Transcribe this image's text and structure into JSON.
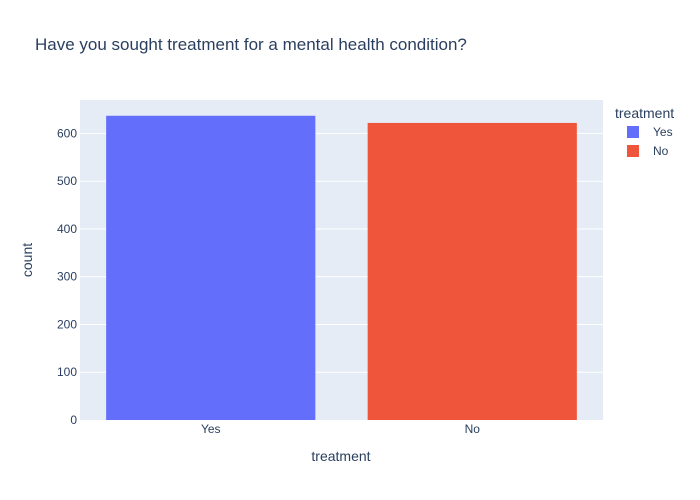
{
  "chart_data": {
    "type": "bar",
    "title": "Have you sought treatment for a mental health condition?",
    "xlabel": "treatment",
    "ylabel": "count",
    "categories": [
      "Yes",
      "No"
    ],
    "series": [
      {
        "name": "Yes",
        "category": "Yes",
        "value": 637,
        "color": "#636efa"
      },
      {
        "name": "No",
        "category": "No",
        "value": 622,
        "color": "#ef553b"
      }
    ],
    "ylim": [
      0,
      670
    ],
    "yticks": [
      0,
      100,
      200,
      300,
      400,
      500,
      600
    ],
    "legend": {
      "title": "treatment",
      "position": "top-right"
    },
    "plot_bgcolor": "#e5ecf6",
    "gridlines": true
  }
}
